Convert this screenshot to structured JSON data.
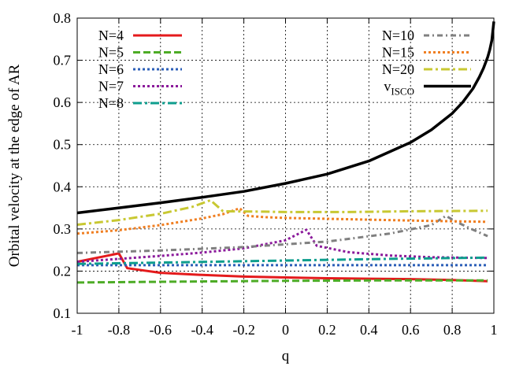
{
  "chart_data": {
    "type": "line",
    "title": "",
    "xlabel": "q",
    "ylabel": "Orbital velocity at the edge of AR",
    "xlim": [
      -1,
      1
    ],
    "ylim": [
      0.1,
      0.8
    ],
    "x_ticks": [
      -1,
      -0.8,
      -0.6,
      -0.4,
      -0.2,
      0,
      0.2,
      0.4,
      0.6,
      0.8,
      1
    ],
    "x_tick_labels": [
      "-1",
      "-0.8",
      "-0.6",
      "-0.4",
      "-0.2",
      "0",
      "0.2",
      "0.4",
      "0.6",
      "0.8",
      "1"
    ],
    "y_ticks": [
      0.1,
      0.2,
      0.3,
      0.4,
      0.5,
      0.6,
      0.7,
      0.8
    ],
    "y_tick_labels": [
      "0.1",
      "0.2",
      "0.3",
      "0.4",
      "0.5",
      "0.6",
      "0.7",
      "0.8"
    ],
    "grid": true,
    "series": [
      {
        "name": "N=4",
        "color": "#e41a1c",
        "dash": "solid",
        "width": 3,
        "x": [
          -1,
          -0.8,
          -0.76,
          -0.6,
          -0.4,
          -0.2,
          0,
          0.2,
          0.4,
          0.6,
          0.8,
          0.97
        ],
        "y": [
          0.222,
          0.242,
          0.207,
          0.196,
          0.191,
          0.187,
          0.185,
          0.183,
          0.182,
          0.181,
          0.179,
          0.176
        ]
      },
      {
        "name": "N=5",
        "color": "#4dac26",
        "dash": "dashed",
        "width": 3,
        "x": [
          -1,
          -0.5,
          0,
          0.5,
          0.97
        ],
        "y": [
          0.173,
          0.175,
          0.177,
          0.178,
          0.178
        ]
      },
      {
        "name": "N=6",
        "color": "#2c5fb8",
        "dash": "dotted",
        "width": 3,
        "x": [
          -1,
          -0.5,
          0,
          0.5,
          0.97
        ],
        "y": [
          0.214,
          0.214,
          0.214,
          0.214,
          0.214
        ]
      },
      {
        "name": "N=7",
        "color": "#8b1a9b",
        "dash": "dotted",
        "width": 3,
        "x": [
          -1,
          -0.8,
          -0.6,
          -0.4,
          -0.2,
          0,
          0.08,
          0.1,
          0.15,
          0.3,
          0.5,
          0.7,
          0.97
        ],
        "y": [
          0.222,
          0.229,
          0.236,
          0.244,
          0.254,
          0.273,
          0.293,
          0.298,
          0.26,
          0.245,
          0.237,
          0.233,
          0.231
        ]
      },
      {
        "name": "N=8",
        "color": "#0f9e8e",
        "dash": "dashdot",
        "width": 3,
        "x": [
          -1,
          -0.5,
          0,
          0.5,
          0.97
        ],
        "y": [
          0.217,
          0.221,
          0.225,
          0.229,
          0.232
        ]
      },
      {
        "name": "N=10",
        "color": "#808080",
        "dash": "dashdot2",
        "width": 3,
        "x": [
          -1,
          -0.6,
          -0.2,
          0.2,
          0.5,
          0.7,
          0.77,
          0.82,
          0.9,
          0.97
        ],
        "y": [
          0.243,
          0.249,
          0.257,
          0.27,
          0.289,
          0.309,
          0.331,
          0.317,
          0.298,
          0.283
        ]
      },
      {
        "name": "N=15",
        "color": "#f07f22",
        "dash": "dotted",
        "width": 3,
        "x": [
          -1,
          -0.8,
          -0.6,
          -0.4,
          -0.3,
          -0.22,
          -0.18,
          -0.1,
          0,
          0.4,
          0.7,
          0.97
        ],
        "y": [
          0.289,
          0.297,
          0.309,
          0.325,
          0.335,
          0.349,
          0.331,
          0.328,
          0.326,
          0.322,
          0.319,
          0.317
        ]
      },
      {
        "name": "N=20",
        "color": "#c8c832",
        "dash": "dashdot",
        "width": 3,
        "x": [
          -1,
          -0.8,
          -0.6,
          -0.45,
          -0.36,
          -0.3,
          -0.1,
          0,
          0.3,
          0.6,
          0.97
        ],
        "y": [
          0.31,
          0.321,
          0.336,
          0.352,
          0.368,
          0.342,
          0.341,
          0.34,
          0.34,
          0.342,
          0.343
        ]
      },
      {
        "name": "vISCO",
        "color": "#000000",
        "dash": "solid",
        "width": 3.5,
        "x": [
          -1,
          -0.8,
          -0.6,
          -0.4,
          -0.2,
          0,
          0.2,
          0.4,
          0.6,
          0.7,
          0.8,
          0.85,
          0.9,
          0.93,
          0.95,
          0.97,
          0.98,
          0.99,
          1.0
        ],
        "y": [
          0.338,
          0.35,
          0.362,
          0.375,
          0.389,
          0.408,
          0.43,
          0.461,
          0.505,
          0.535,
          0.574,
          0.6,
          0.633,
          0.66,
          0.681,
          0.707,
          0.724,
          0.747,
          0.792
        ]
      }
    ],
    "legend": {
      "left": [
        "N=4",
        "N=5",
        "N=6",
        "N=7",
        "N=8"
      ],
      "right": [
        "N=10",
        "N=15",
        "N=20",
        "vISCO"
      ],
      "visco_label": {
        "main": "v",
        "sub": "ISCO"
      }
    }
  }
}
